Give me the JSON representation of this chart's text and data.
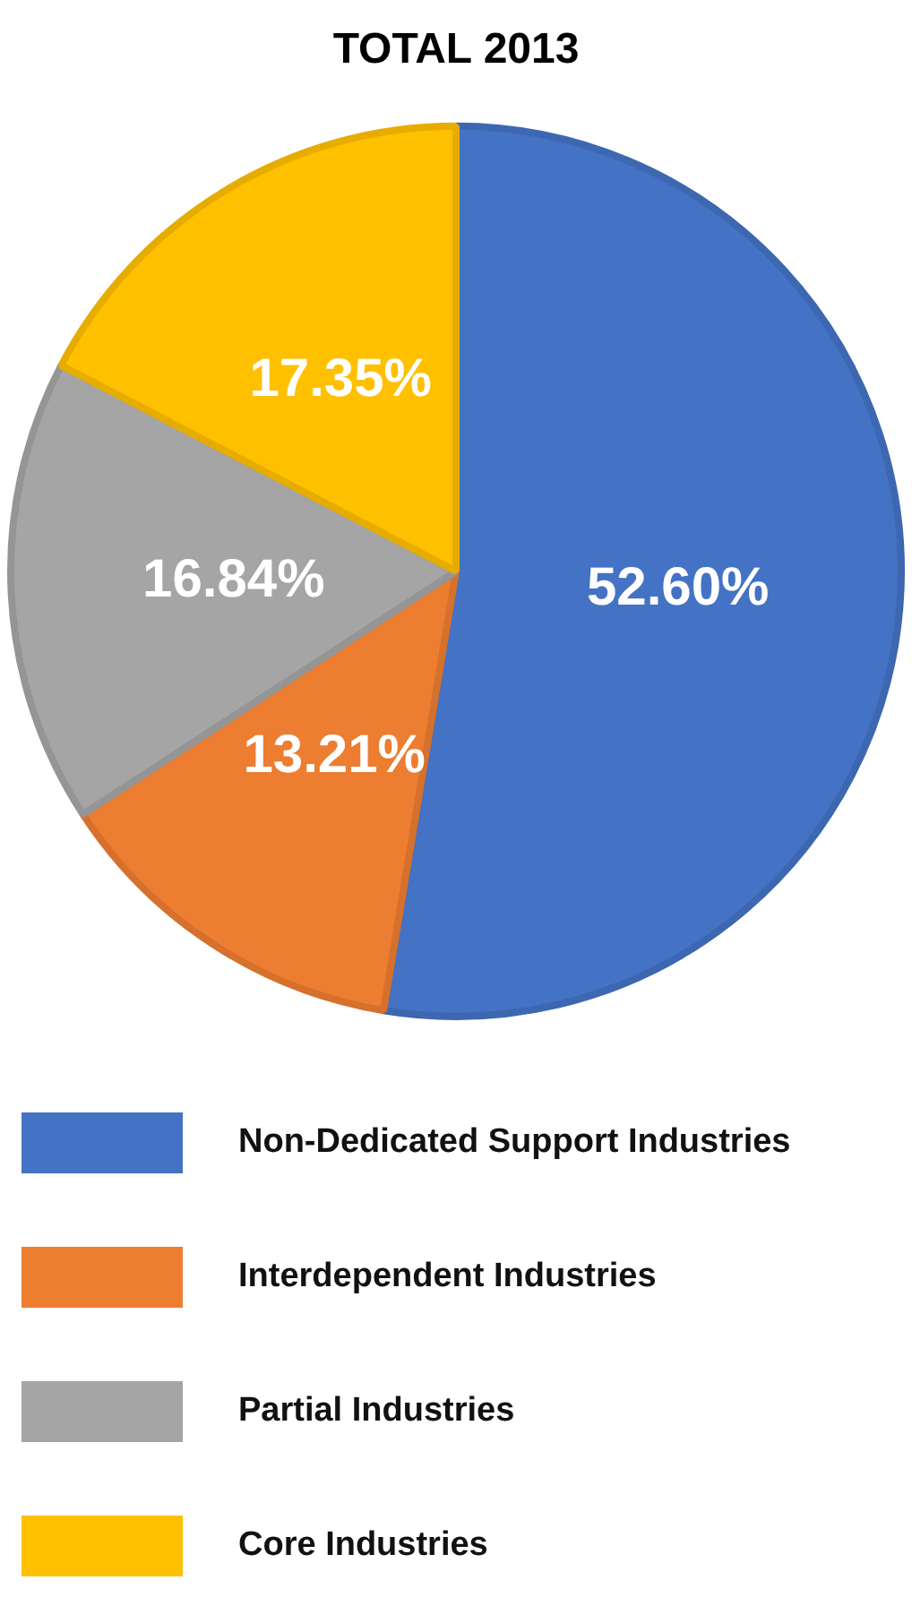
{
  "chart_data": {
    "type": "pie",
    "title": "TOTAL 2013",
    "categories": [
      "Non-Dedicated Support Industries",
      "Interdependent Industries",
      "Partial Industries",
      "Core Industries"
    ],
    "values": [
      52.6,
      13.21,
      16.84,
      17.35
    ],
    "value_labels": [
      "52.60%",
      "13.21%",
      "16.84%",
      "17.35%"
    ],
    "colors": [
      "#4472c4",
      "#ed7d31",
      "#a5a5a5",
      "#ffc000"
    ],
    "legend": "bottom"
  }
}
